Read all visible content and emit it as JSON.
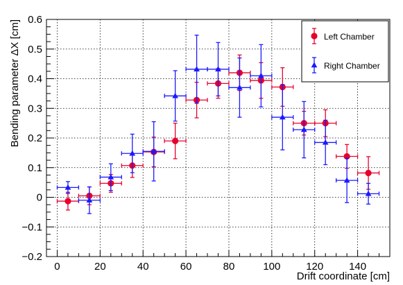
{
  "chart_data": {
    "type": "scatter",
    "title": "",
    "xlabel": "Drift coordinate [cm]",
    "ylabel": "Bending parameter ΔX [cm]",
    "xlim": [
      -5,
      155
    ],
    "ylim": [
      -0.2,
      0.6
    ],
    "x_ticks": [
      0,
      20,
      40,
      60,
      80,
      100,
      120,
      140
    ],
    "y_ticks": [
      -0.2,
      -0.1,
      0,
      0.1,
      0.2,
      0.3,
      0.4,
      0.5,
      0.6
    ],
    "x_tick_labels": [
      "0",
      "20",
      "40",
      "60",
      "80",
      "100",
      "120",
      "140"
    ],
    "y_tick_labels": [
      "−0.2",
      "−0.1",
      "0",
      "0.1",
      "0.2",
      "0.3",
      "0.4",
      "0.5",
      "0.6"
    ],
    "grid": true,
    "legend_position": "top-right",
    "series": [
      {
        "name": "Left Chamber",
        "color": "#e8002d",
        "marker": "circle",
        "points": [
          {
            "x": 5,
            "y": -0.013,
            "xerr": 5,
            "yerr": 0.03
          },
          {
            "x": 15,
            "y": 0.005,
            "xerr": 5,
            "yerr": 0.03
          },
          {
            "x": 25,
            "y": 0.047,
            "xerr": 5,
            "yerr": 0.03
          },
          {
            "x": 35,
            "y": 0.107,
            "xerr": 5,
            "yerr": 0.04
          },
          {
            "x": 45,
            "y": 0.153,
            "xerr": 5,
            "yerr": 0.05
          },
          {
            "x": 55,
            "y": 0.19,
            "xerr": 5,
            "yerr": 0.06
          },
          {
            "x": 65,
            "y": 0.328,
            "xerr": 5,
            "yerr": 0.06
          },
          {
            "x": 75,
            "y": 0.384,
            "xerr": 5,
            "yerr": 0.05
          },
          {
            "x": 85,
            "y": 0.42,
            "xerr": 5,
            "yerr": 0.06
          },
          {
            "x": 95,
            "y": 0.394,
            "xerr": 5,
            "yerr": 0.06
          },
          {
            "x": 105,
            "y": 0.372,
            "xerr": 5,
            "yerr": 0.065
          },
          {
            "x": 115,
            "y": 0.25,
            "xerr": 5,
            "yerr": 0.04
          },
          {
            "x": 125,
            "y": 0.25,
            "xerr": 5,
            "yerr": 0.045
          },
          {
            "x": 135,
            "y": 0.138,
            "xerr": 5,
            "yerr": 0.04
          },
          {
            "x": 145,
            "y": 0.082,
            "xerr": 5,
            "yerr": 0.055
          }
        ]
      },
      {
        "name": "Right Chamber",
        "color": "#1a1aff",
        "marker": "triangle",
        "points": [
          {
            "x": 5,
            "y": 0.033,
            "xerr": 5,
            "yerr": 0.02
          },
          {
            "x": 15,
            "y": -0.01,
            "xerr": 5,
            "yerr": 0.045
          },
          {
            "x": 25,
            "y": 0.068,
            "xerr": 5,
            "yerr": 0.045
          },
          {
            "x": 35,
            "y": 0.148,
            "xerr": 5,
            "yerr": 0.065
          },
          {
            "x": 45,
            "y": 0.155,
            "xerr": 5,
            "yerr": 0.1
          },
          {
            "x": 55,
            "y": 0.342,
            "xerr": 5,
            "yerr": 0.085
          },
          {
            "x": 65,
            "y": 0.432,
            "xerr": 5,
            "yerr": 0.115
          },
          {
            "x": 75,
            "y": 0.432,
            "xerr": 5,
            "yerr": 0.09
          },
          {
            "x": 85,
            "y": 0.37,
            "xerr": 5,
            "yerr": 0.1
          },
          {
            "x": 95,
            "y": 0.41,
            "xerr": 5,
            "yerr": 0.105
          },
          {
            "x": 105,
            "y": 0.27,
            "xerr": 5,
            "yerr": 0.11
          },
          {
            "x": 115,
            "y": 0.228,
            "xerr": 5,
            "yerr": 0.095
          },
          {
            "x": 125,
            "y": 0.185,
            "xerr": 5,
            "yerr": 0.075
          },
          {
            "x": 135,
            "y": 0.057,
            "xerr": 5,
            "yerr": 0.075
          },
          {
            "x": 145,
            "y": 0.012,
            "xerr": 5,
            "yerr": 0.035
          }
        ]
      }
    ]
  }
}
